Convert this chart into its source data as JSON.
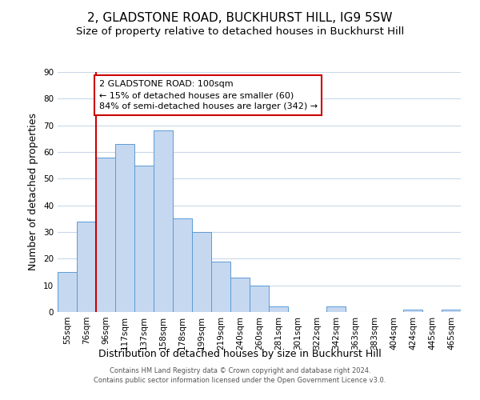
{
  "title": "2, GLADSTONE ROAD, BUCKHURST HILL, IG9 5SW",
  "subtitle": "Size of property relative to detached houses in Buckhurst Hill",
  "xlabel": "Distribution of detached houses by size in Buckhurst Hill",
  "ylabel": "Number of detached properties",
  "bar_labels": [
    "55sqm",
    "76sqm",
    "96sqm",
    "117sqm",
    "137sqm",
    "158sqm",
    "178sqm",
    "199sqm",
    "219sqm",
    "240sqm",
    "260sqm",
    "281sqm",
    "301sqm",
    "322sqm",
    "342sqm",
    "363sqm",
    "383sqm",
    "404sqm",
    "424sqm",
    "445sqm",
    "465sqm"
  ],
  "bar_heights": [
    15,
    34,
    58,
    63,
    55,
    68,
    35,
    30,
    19,
    13,
    10,
    2,
    0,
    0,
    2,
    0,
    0,
    0,
    1,
    0,
    1
  ],
  "bar_color": "#c5d8f0",
  "bar_edge_color": "#5b9bd5",
  "vline_x_index": 2,
  "annotation_title": "2 GLADSTONE ROAD: 100sqm",
  "annotation_line1": "← 15% of detached houses are smaller (60)",
  "annotation_line2": "84% of semi-detached houses are larger (342) →",
  "annotation_box_color": "#ffffff",
  "annotation_box_edge_color": "#cc0000",
  "vline_color": "#cc0000",
  "ylim": [
    0,
    90
  ],
  "yticks": [
    0,
    10,
    20,
    30,
    40,
    50,
    60,
    70,
    80,
    90
  ],
  "title_fontsize": 11,
  "subtitle_fontsize": 9.5,
  "xlabel_fontsize": 9,
  "ylabel_fontsize": 9,
  "tick_fontsize": 7.5,
  "footer_line1": "Contains HM Land Registry data © Crown copyright and database right 2024.",
  "footer_line2": "Contains public sector information licensed under the Open Government Licence v3.0.",
  "bg_color": "#ffffff",
  "grid_color": "#c8d8e8"
}
